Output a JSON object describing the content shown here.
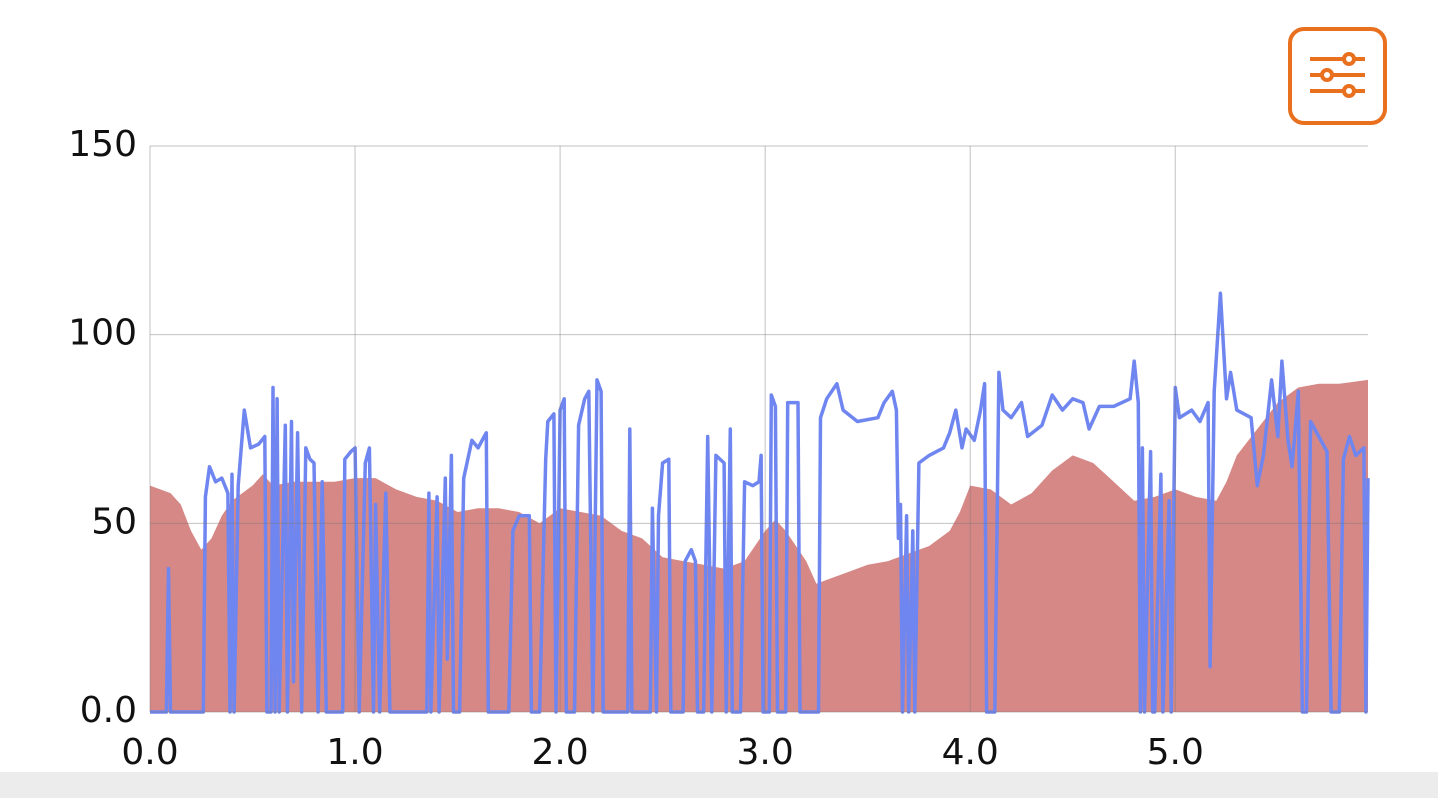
{
  "chart_data": {
    "type": "line",
    "xlim": [
      0,
      5.94
    ],
    "ylim": [
      0,
      150
    ],
    "xticks": [
      {
        "value": 0,
        "label": "0.0"
      },
      {
        "value": 1,
        "label": "1.0"
      },
      {
        "value": 2,
        "label": "2.0"
      },
      {
        "value": 3,
        "label": "3.0"
      },
      {
        "value": 4,
        "label": "4.0"
      },
      {
        "value": 5,
        "label": "5.0"
      }
    ],
    "yticks": [
      {
        "value": 0,
        "label": "0.0"
      },
      50,
      100,
      150
    ],
    "grid": true,
    "series": [
      {
        "type": "area",
        "color": "#d58886",
        "x": [
          0,
          0.1,
          0.15,
          0.2,
          0.25,
          0.3,
          0.35,
          0.4,
          0.5,
          0.55,
          0.6,
          0.7,
          0.8,
          0.9,
          1.0,
          1.1,
          1.2,
          1.3,
          1.4,
          1.5,
          1.6,
          1.7,
          1.8,
          1.9,
          2.0,
          2.1,
          2.2,
          2.3,
          2.4,
          2.5,
          2.6,
          2.7,
          2.8,
          2.9,
          3.0,
          3.05,
          3.1,
          3.2,
          3.25,
          3.3,
          3.4,
          3.5,
          3.6,
          3.7,
          3.8,
          3.9,
          3.95,
          4.0,
          4.1,
          4.2,
          4.3,
          4.4,
          4.5,
          4.6,
          4.7,
          4.8,
          4.9,
          5.0,
          5.1,
          5.2,
          5.25,
          5.3,
          5.4,
          5.5,
          5.6,
          5.7,
          5.8,
          5.94
        ],
        "values": [
          60,
          58,
          55,
          48,
          43,
          46,
          52,
          56,
          60,
          63,
          60,
          61,
          61,
          61,
          62,
          62,
          59,
          57,
          56,
          53,
          54,
          54,
          53,
          50,
          54,
          53,
          52,
          48,
          46,
          41,
          40,
          39,
          38,
          40,
          48,
          51,
          48,
          40,
          34,
          35,
          37,
          39,
          40,
          42,
          44,
          48,
          53,
          60,
          59,
          55,
          58,
          64,
          68,
          66,
          61,
          56,
          57,
          59,
          57,
          56,
          61,
          68,
          75,
          82,
          86,
          87,
          87,
          88
        ]
      },
      {
        "type": "line",
        "color": "#6f86f0",
        "x": [
          0,
          0.08,
          0.09,
          0.1,
          0.26,
          0.27,
          0.29,
          0.32,
          0.35,
          0.38,
          0.39,
          0.4,
          0.41,
          0.43,
          0.46,
          0.49,
          0.53,
          0.56,
          0.57,
          0.59,
          0.6,
          0.61,
          0.62,
          0.63,
          0.66,
          0.67,
          0.69,
          0.7,
          0.72,
          0.74,
          0.76,
          0.78,
          0.8,
          0.82,
          0.84,
          0.86,
          0.94,
          0.95,
          0.98,
          1.0,
          1.02,
          1.05,
          1.07,
          1.09,
          1.1,
          1.12,
          1.15,
          1.17,
          1.35,
          1.36,
          1.37,
          1.4,
          1.41,
          1.44,
          1.45,
          1.47,
          1.48,
          1.51,
          1.53,
          1.55,
          1.57,
          1.6,
          1.63,
          1.64,
          1.65,
          1.75,
          1.77,
          1.8,
          1.85,
          1.86,
          1.9,
          1.93,
          1.94,
          1.97,
          1.98,
          2.0,
          2.02,
          2.03,
          2.07,
          2.09,
          2.12,
          2.14,
          2.16,
          2.18,
          2.2,
          2.21,
          2.33,
          2.34,
          2.35,
          2.44,
          2.45,
          2.47,
          2.48,
          2.5,
          2.53,
          2.54,
          2.6,
          2.61,
          2.64,
          2.66,
          2.67,
          2.7,
          2.72,
          2.74,
          2.76,
          2.8,
          2.81,
          2.83,
          2.84,
          2.88,
          2.9,
          2.94,
          2.97,
          2.98,
          2.99,
          3.02,
          3.03,
          3.05,
          3.06,
          3.1,
          3.11,
          3.16,
          3.17,
          3.26,
          3.27,
          3.3,
          3.35,
          3.38,
          3.45,
          3.55,
          3.58,
          3.62,
          3.64,
          3.65,
          3.66,
          3.67,
          3.69,
          3.7,
          3.72,
          3.73,
          3.75,
          3.8,
          3.87,
          3.9,
          3.93,
          3.96,
          3.98,
          4.02,
          4.05,
          4.07,
          4.08,
          4.12,
          4.14,
          4.16,
          4.2,
          4.25,
          4.28,
          4.35,
          4.4,
          4.45,
          4.5,
          4.55,
          4.58,
          4.63,
          4.7,
          4.78,
          4.8,
          4.82,
          4.83,
          4.84,
          4.85,
          4.88,
          4.89,
          4.9,
          4.93,
          4.94,
          4.97,
          4.98,
          5.0,
          5.02,
          5.08,
          5.12,
          5.16,
          5.17,
          5.19,
          5.22,
          5.25,
          5.27,
          5.3,
          5.37,
          5.4,
          5.43,
          5.47,
          5.5,
          5.52,
          5.55,
          5.57,
          5.6,
          5.62,
          5.64,
          5.66,
          5.7,
          5.74,
          5.76,
          5.8,
          5.82,
          5.85,
          5.88,
          5.92,
          5.93,
          5.94
        ],
        "values": [
          0,
          0,
          38,
          0,
          0,
          57,
          65,
          61,
          62,
          58,
          0,
          63,
          0,
          60,
          80,
          70,
          71,
          73,
          0,
          0,
          86,
          0,
          83,
          0,
          76,
          0,
          77,
          8,
          74,
          0,
          70,
          67,
          66,
          0,
          61,
          0,
          0,
          67,
          69,
          70,
          0,
          66,
          70,
          0,
          55,
          0,
          58,
          0,
          0,
          58,
          0,
          57,
          0,
          62,
          14,
          68,
          0,
          0,
          62,
          67,
          72,
          70,
          73,
          74,
          0,
          0,
          48,
          52,
          52,
          0,
          0,
          67,
          77,
          79,
          0,
          80,
          83,
          0,
          0,
          76,
          83,
          85,
          0,
          88,
          85,
          0,
          0,
          75,
          0,
          0,
          54,
          0,
          52,
          66,
          67,
          0,
          0,
          40,
          43,
          40,
          0,
          0,
          73,
          0,
          68,
          66,
          0,
          75,
          0,
          0,
          61,
          60,
          61,
          68,
          0,
          0,
          84,
          81,
          0,
          0,
          82,
          82,
          0,
          0,
          78,
          83,
          87,
          80,
          77,
          78,
          82,
          85,
          80,
          46,
          55,
          0,
          52,
          0,
          48,
          0,
          66,
          68,
          70,
          74,
          80,
          70,
          75,
          72,
          80,
          87,
          0,
          0,
          90,
          80,
          78,
          82,
          73,
          76,
          84,
          80,
          83,
          82,
          75,
          81,
          81,
          83,
          93,
          82,
          0,
          70,
          0,
          69,
          0,
          0,
          63,
          0,
          56,
          0,
          86,
          78,
          80,
          77,
          82,
          12,
          85,
          111,
          83,
          90,
          80,
          78,
          60,
          68,
          88,
          73,
          93,
          72,
          65,
          85,
          0,
          0,
          77,
          73,
          69,
          0,
          0,
          67,
          73,
          68,
          70,
          0,
          62
        ]
      }
    ]
  }
}
